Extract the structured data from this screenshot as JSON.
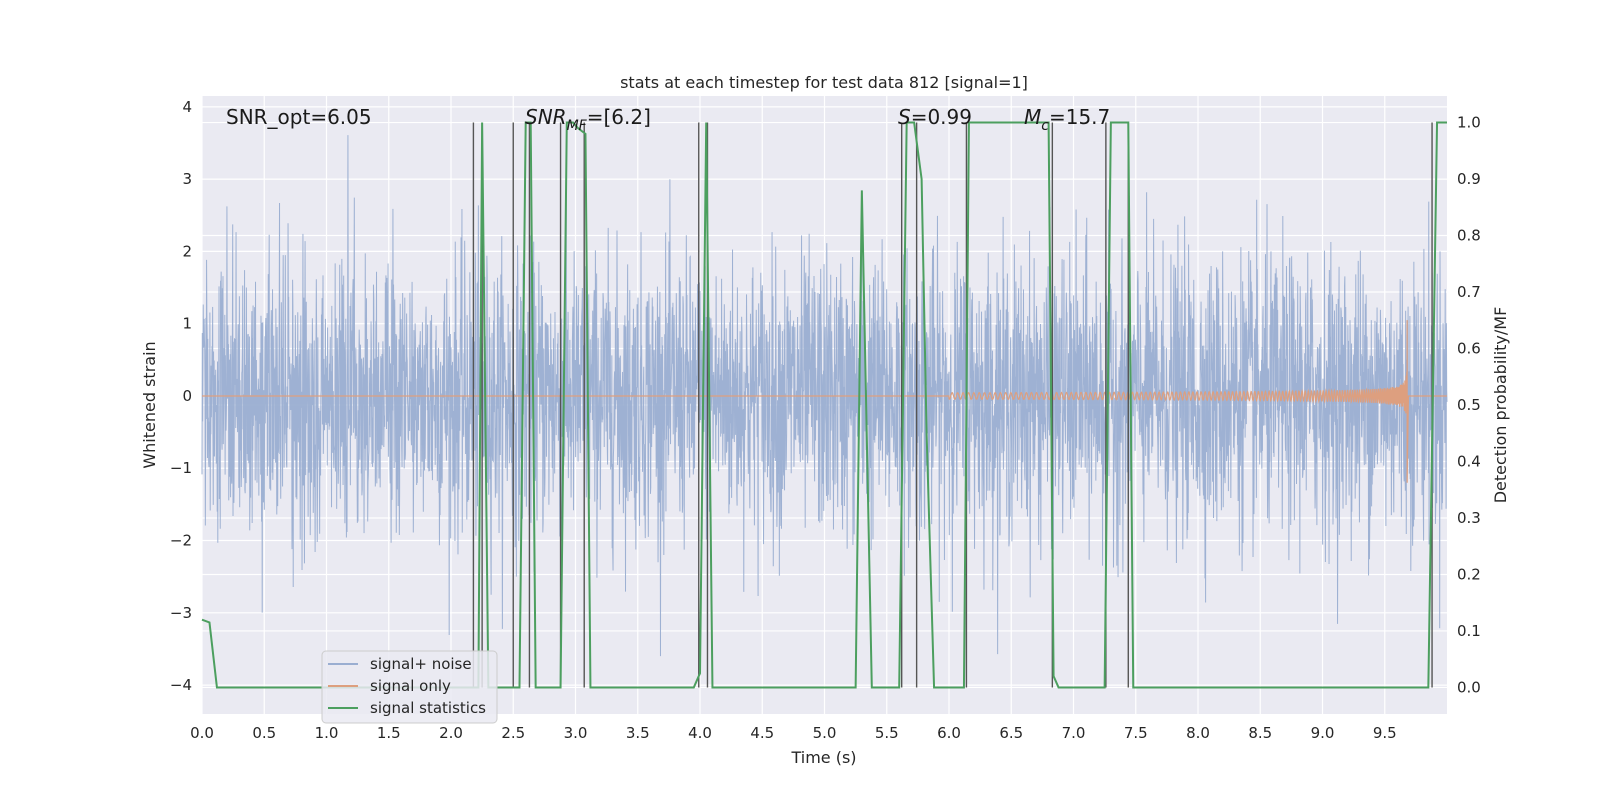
{
  "chart_data": {
    "type": "line",
    "title": "stats at each timestep for test data 812 [signal=1]",
    "xlabel": "Time (s)",
    "ylabel": "Whitened strain",
    "y2label": "Detection probability/MF",
    "xlim": [
      0.0,
      10.0
    ],
    "ylim": [
      -4.4,
      4.15
    ],
    "y2lim": [
      -0.047,
      1.047
    ],
    "xticks": [
      "0.0",
      "0.5",
      "1.0",
      "1.5",
      "2.0",
      "2.5",
      "3.0",
      "3.5",
      "4.0",
      "4.5",
      "5.0",
      "5.5",
      "6.0",
      "6.5",
      "7.0",
      "7.5",
      "8.0",
      "8.5",
      "9.0",
      "9.5"
    ],
    "yticks": [
      "4",
      "3",
      "2",
      "1",
      "0",
      "−1",
      "−2",
      "−3",
      "−4"
    ],
    "y2ticks": [
      "1.0",
      "0.9",
      "0.8",
      "0.7",
      "0.6",
      "0.5",
      "0.4",
      "0.3",
      "0.2",
      "0.1",
      "0.0"
    ],
    "grid": true,
    "legend_position": "lower-left",
    "annotations": {
      "snr_opt": "SNR_opt=6.05",
      "snr_mf_base": "SNR",
      "snr_mf_sub": "MF",
      "snr_mf_rest": "=[6.2]",
      "s_italic": "S",
      "s_rest": "=0.99",
      "mc_base": "M",
      "mc_sub": "c",
      "mc_rest": "=15.7"
    },
    "series": [
      {
        "name": "signal+ noise",
        "color": "#9aaed1",
        "description_values": "whitened noise, amplitude roughly within [-3.6, 3.7] strain units over t=0..10 s"
      },
      {
        "name": "signal only",
        "color": "#dd9f7f",
        "chirp": {
          "start_t": 6.0,
          "merger_t": 9.68,
          "peak_high": 1.05,
          "peak_low": -1.2
        }
      },
      {
        "name": "signal statistics",
        "color": "#4c9f5f",
        "x": [
          0.0,
          0.06,
          0.12,
          2.2,
          2.22,
          2.25,
          2.3,
          2.5,
          2.55,
          2.6,
          2.64,
          2.68,
          2.88,
          2.93,
          2.98,
          3.02,
          3.08,
          3.12,
          3.95,
          4.0,
          4.05,
          4.1,
          5.25,
          5.3,
          5.38,
          5.6,
          5.66,
          5.72,
          5.78,
          5.82,
          5.88,
          6.12,
          6.16,
          6.2,
          6.6,
          6.8,
          6.84,
          6.88,
          6.95,
          7.25,
          7.3,
          7.34,
          7.4,
          7.44,
          7.48,
          9.85,
          9.92,
          10.0
        ],
        "values": [
          0.12,
          0.115,
          0.0,
          0.0,
          0.0,
          1.0,
          0.0,
          0.0,
          0.0,
          1.0,
          1.0,
          0.0,
          0.0,
          1.0,
          1.0,
          0.99,
          0.98,
          0.0,
          0.0,
          0.025,
          1.0,
          0.0,
          0.0,
          0.88,
          0.0,
          0.0,
          1.0,
          1.0,
          0.9,
          0.45,
          0.0,
          0.0,
          1.0,
          1.0,
          1.0,
          1.0,
          0.02,
          0.0,
          0.0,
          0.0,
          1.0,
          1.0,
          1.0,
          1.0,
          0.0,
          0.0,
          1.0,
          1.0
        ]
      }
    ],
    "vlines_x": [
      2.18,
      2.25,
      2.5,
      2.63,
      2.88,
      3.07,
      3.99,
      4.06,
      5.62,
      5.74,
      6.14,
      6.83,
      7.26,
      7.44,
      9.88
    ],
    "vline_color": "#555555"
  }
}
